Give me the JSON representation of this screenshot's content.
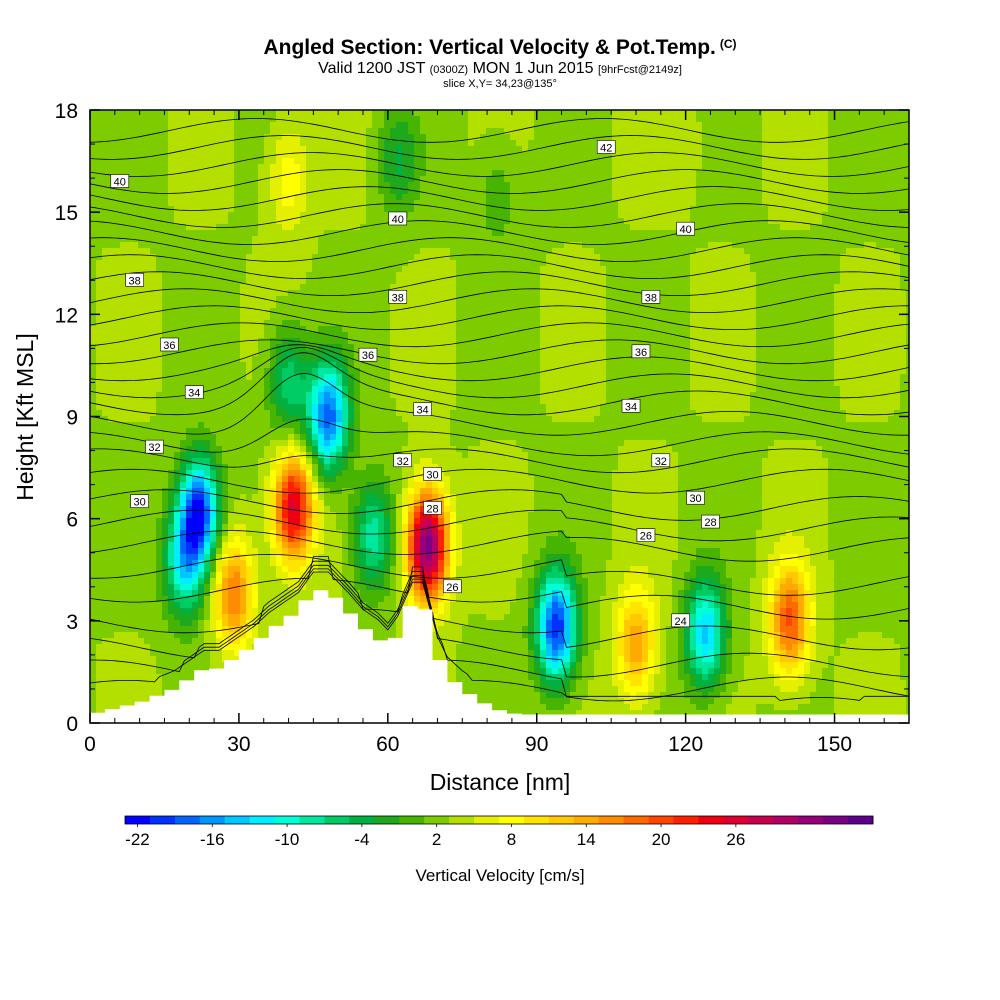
{
  "header": {
    "title": "Angled Section: Vertical Velocity & Pot.Temp.",
    "title_suffix": "(C)",
    "valid_prefix": "Valid 1200 JST",
    "valid_utc": "(0300Z)",
    "valid_date": "MON 1 Jun 2015",
    "forecast_tag": "[9hrFcst@2149z]",
    "slice": "slice X,Y= 34,23@135°"
  },
  "chart_data": {
    "type": "heatmap",
    "title": "Angled Section: Vertical Velocity & Pot.Temp.",
    "xlabel": "Distance [nm]",
    "ylabel": "Height [Kft MSL]",
    "xlim": [
      0,
      165
    ],
    "ylim": [
      0,
      18
    ],
    "x_ticks": [
      "0",
      "30",
      "60",
      "90",
      "120",
      "150"
    ],
    "y_ticks": [
      "0",
      "3",
      "6",
      "9",
      "12",
      "15",
      "18"
    ],
    "terrain": {
      "x": [
        0,
        10,
        17,
        20,
        23,
        26,
        30,
        33,
        36,
        39,
        42,
        45,
        48,
        52,
        55,
        58,
        60,
        62,
        65,
        67,
        70,
        72,
        75,
        78,
        81,
        84,
        87,
        90
      ],
      "height": [
        0.25,
        0.6,
        1.0,
        1.3,
        1.6,
        1.6,
        2.0,
        2.3,
        2.7,
        3.0,
        3.3,
        3.9,
        3.9,
        3.3,
        2.8,
        2.5,
        2.2,
        2.6,
        3.6,
        3.6,
        2.0,
        1.4,
        1.0,
        0.7,
        0.45,
        0.3,
        0.25,
        0.25
      ]
    },
    "vertical_velocity": {
      "units": "cm/s",
      "background": 0,
      "features": [
        {
          "x": 22,
          "z": 6.2,
          "value": -20
        },
        {
          "x": 19,
          "z": 4.7,
          "value": -12
        },
        {
          "x": 29,
          "z": 3.8,
          "value": 12
        },
        {
          "x": 41,
          "z": 6.3,
          "value": 20
        },
        {
          "x": 48,
          "z": 9.0,
          "value": -18
        },
        {
          "x": 40,
          "z": 10.0,
          "value": -8
        },
        {
          "x": 57,
          "z": 5.5,
          "value": -10
        },
        {
          "x": 68,
          "z": 5.2,
          "value": 27
        },
        {
          "x": 94,
          "z": 2.8,
          "value": -20
        },
        {
          "x": 110,
          "z": 2.3,
          "value": 10
        },
        {
          "x": 124,
          "z": 2.6,
          "value": -14
        },
        {
          "x": 141,
          "z": 3.0,
          "value": 14
        },
        {
          "x": 40,
          "z": 16.0,
          "value": 5
        },
        {
          "x": 62,
          "z": 16.5,
          "value": -5
        },
        {
          "x": 82,
          "z": 15.5,
          "value": -3
        },
        {
          "x": 120,
          "z": 17.0,
          "value": 1
        }
      ]
    },
    "potential_temperature": {
      "units": "C",
      "levels": [
        24,
        26,
        28,
        30,
        32,
        34,
        36,
        38,
        40,
        42
      ],
      "labels": [
        {
          "text": "40",
          "x": 6,
          "z": 15.9
        },
        {
          "text": "42",
          "x": 104,
          "z": 16.9
        },
        {
          "text": "40",
          "x": 62,
          "z": 14.8
        },
        {
          "text": "40",
          "x": 120,
          "z": 14.5
        },
        {
          "text": "38",
          "x": 9,
          "z": 13.0
        },
        {
          "text": "38",
          "x": 62,
          "z": 12.5
        },
        {
          "text": "38",
          "x": 113,
          "z": 12.5
        },
        {
          "text": "36",
          "x": 16,
          "z": 11.1
        },
        {
          "text": "36",
          "x": 56,
          "z": 10.8
        },
        {
          "text": "36",
          "x": 111,
          "z": 10.9
        },
        {
          "text": "34",
          "x": 21,
          "z": 9.7
        },
        {
          "text": "34",
          "x": 67,
          "z": 9.2
        },
        {
          "text": "34",
          "x": 109,
          "z": 9.3
        },
        {
          "text": "32",
          "x": 13,
          "z": 8.1
        },
        {
          "text": "32",
          "x": 63,
          "z": 7.7
        },
        {
          "text": "32",
          "x": 115,
          "z": 7.7
        },
        {
          "text": "30",
          "x": 10,
          "z": 6.5
        },
        {
          "text": "30",
          "x": 69,
          "z": 7.3
        },
        {
          "text": "30",
          "x": 122,
          "z": 6.6
        },
        {
          "text": "28",
          "x": 69,
          "z": 6.3
        },
        {
          "text": "28",
          "x": 125,
          "z": 5.9
        },
        {
          "text": "26",
          "x": 112,
          "z": 5.5
        },
        {
          "text": "26",
          "x": 73,
          "z": 4.0
        },
        {
          "text": "24",
          "x": 119,
          "z": 3.0
        }
      ]
    },
    "colorbar": {
      "title": "Vertical Velocity [cm/s]",
      "tick_labels": [
        "-22",
        "-16",
        "-10",
        "-4",
        "2",
        "8",
        "14",
        "20",
        "26"
      ],
      "colors": [
        "#0000ff",
        "#0032ff",
        "#0064ff",
        "#0096ff",
        "#00c8ff",
        "#00eeff",
        "#00ffd6",
        "#00e8a0",
        "#00cc66",
        "#00b040",
        "#1ea81e",
        "#46b400",
        "#7ccc00",
        "#b4e000",
        "#e4f000",
        "#ffff00",
        "#ffe400",
        "#ffc800",
        "#ffaa00",
        "#ff8c00",
        "#ff6a00",
        "#ff4600",
        "#ff2000",
        "#ee0010",
        "#dd0030",
        "#c80050",
        "#b00068",
        "#960078",
        "#7a0086",
        "#5c008c"
      ]
    }
  }
}
